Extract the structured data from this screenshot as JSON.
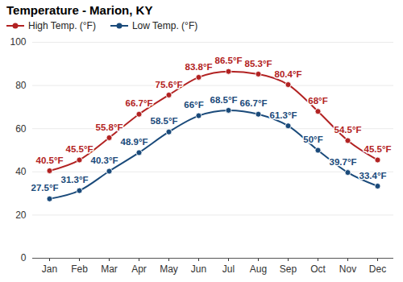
{
  "chart_data": {
    "type": "line",
    "title": "Temperature - Marion, KY",
    "categories": [
      "Jan",
      "Feb",
      "Mar",
      "Apr",
      "May",
      "Jun",
      "Jul",
      "Aug",
      "Sep",
      "Oct",
      "Nov",
      "Dec"
    ],
    "series": [
      {
        "name": "High Temp. (°F)",
        "color": "#b22222",
        "marker": "circle",
        "line_style": "solid",
        "values": [
          40.5,
          45.5,
          55.8,
          66.7,
          75.6,
          83.8,
          86.5,
          85.3,
          80.4,
          68,
          54.5,
          45.5
        ],
        "value_labels": [
          "40.5°F",
          "45.5°F",
          "55.8°F",
          "66.7°F",
          "75.6°F",
          "83.8°F",
          "86.5°F",
          "85.3°F",
          "80.4°F",
          "68°F",
          "54.5°F",
          "45.5°F"
        ]
      },
      {
        "name": "Low Temp. (°F)",
        "color": "#1a4a7a",
        "marker": "circle",
        "line_style": "solid",
        "values": [
          27.5,
          31.3,
          40.3,
          48.9,
          58.5,
          66,
          68.5,
          66.7,
          61.3,
          50,
          39.7,
          33.4
        ],
        "value_labels": [
          "27.5°F",
          "31.3°F",
          "40.3°F",
          "48.9°F",
          "58.5°F",
          "66°F",
          "68.5°F",
          "66.7°F",
          "61.3°F",
          "50°F",
          "39.7°F",
          "33.4°F"
        ]
      }
    ],
    "ylim": [
      0,
      100
    ],
    "yticks": [
      0,
      20,
      40,
      60,
      80,
      100
    ],
    "grid": true,
    "legend": "top-left",
    "data_labels": true
  }
}
